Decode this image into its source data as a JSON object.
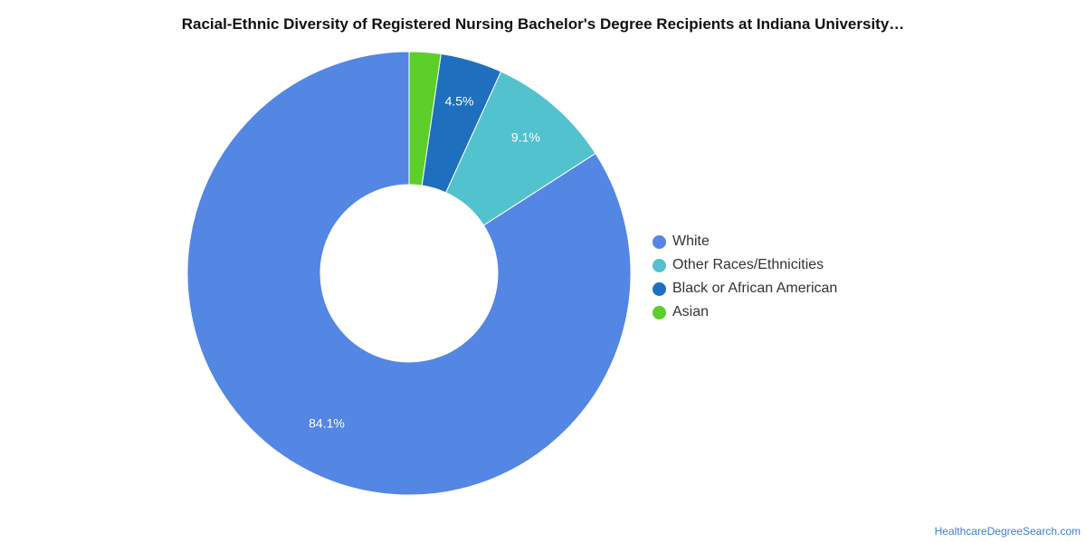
{
  "chart_data": {
    "type": "pie",
    "title": "Racial-Ethnic Diversity of Registered Nursing Bachelor's Degree Recipients at Indiana University…",
    "donut": true,
    "legend_position": "right",
    "series": [
      {
        "name": "White",
        "value": 84.1,
        "label": "84.1%",
        "color": "#5486e3"
      },
      {
        "name": "Other Races/Ethnicities",
        "value": 9.1,
        "label": "9.1%",
        "color": "#52c2ce"
      },
      {
        "name": "Black or African American",
        "value": 4.5,
        "label": "4.5%",
        "color": "#1f6fbf"
      },
      {
        "name": "Asian",
        "value": 2.3,
        "label": "",
        "color": "#5ccf2a"
      }
    ]
  },
  "footer": {
    "source": "HealthcareDegreeSearch.com"
  }
}
